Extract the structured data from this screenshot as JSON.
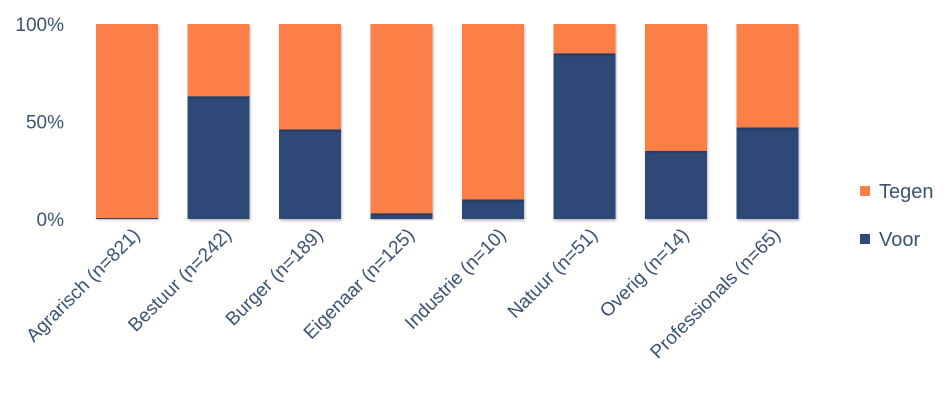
{
  "chart_data": {
    "type": "bar",
    "stacked": true,
    "percent": true,
    "categories": [
      "Agrarisch (n=821)",
      "Bestuur (n=242)",
      "Burger (n=189)",
      "Eigenaar (n=125)",
      "Industrie (n=10)",
      "Natuur (n=51)",
      "Overig (n=14)",
      "Professionals (n=65)"
    ],
    "series": [
      {
        "name": "Voor",
        "color": "#2e4a78",
        "values": [
          0.5,
          63,
          46,
          3,
          10,
          85,
          35,
          47
        ]
      },
      {
        "name": "Tegen",
        "color": "#fb7f46",
        "values": [
          99.5,
          37,
          54,
          97,
          90,
          15,
          65,
          53
        ]
      }
    ],
    "y_ticks": [
      "0%",
      "50%",
      "100%"
    ],
    "ylim": [
      0,
      100
    ],
    "legend_position": "right",
    "grid": false,
    "title": "",
    "xlabel": "",
    "ylabel": ""
  }
}
